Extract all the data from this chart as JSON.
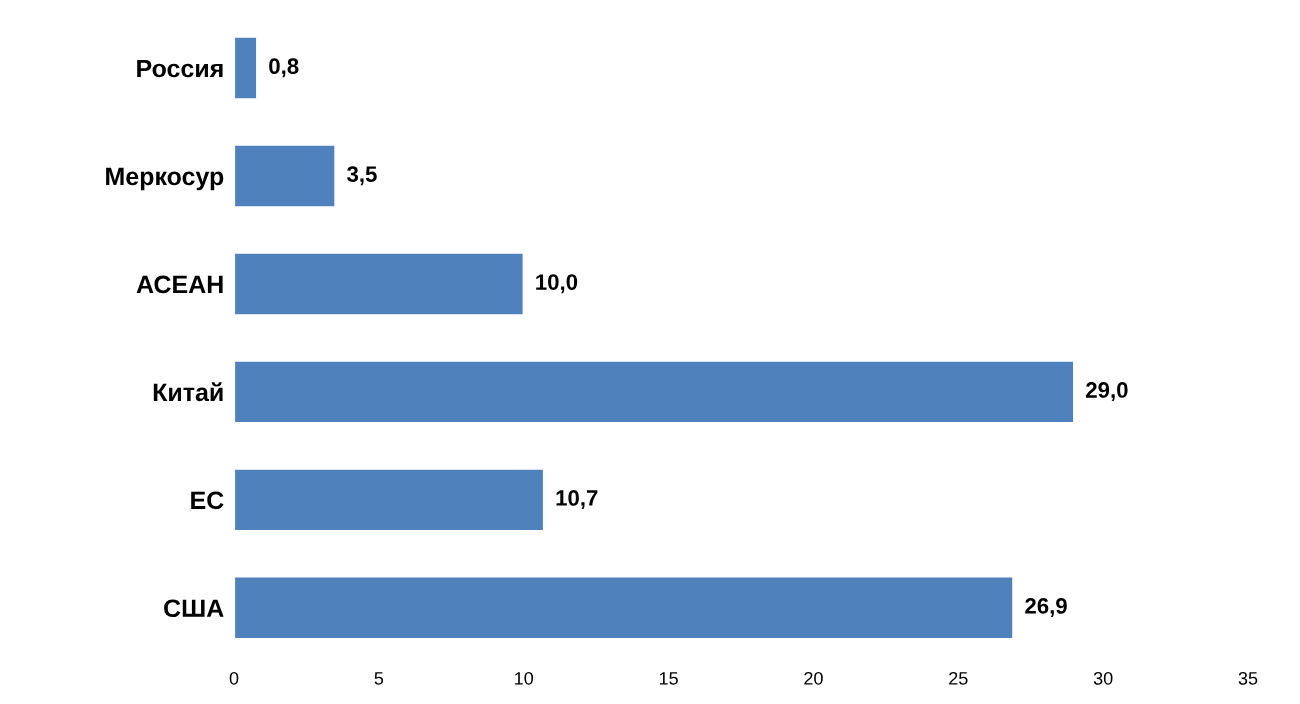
{
  "chart_data": {
    "type": "bar",
    "orientation": "horizontal",
    "categories": [
      "Россия",
      "Меркосур",
      "АСЕАН",
      "Китай",
      "ЕС",
      "США"
    ],
    "values": [
      0.8,
      3.5,
      10.0,
      29.0,
      10.7,
      26.9
    ],
    "value_labels": [
      "0,8",
      "3,5",
      "10,0",
      "29,0",
      "10,7",
      "26,9"
    ],
    "color": "#4f81bd",
    "xlim": [
      0,
      35
    ],
    "xticks": [
      0,
      5,
      10,
      15,
      20,
      25,
      30,
      35
    ],
    "grid": false
  }
}
